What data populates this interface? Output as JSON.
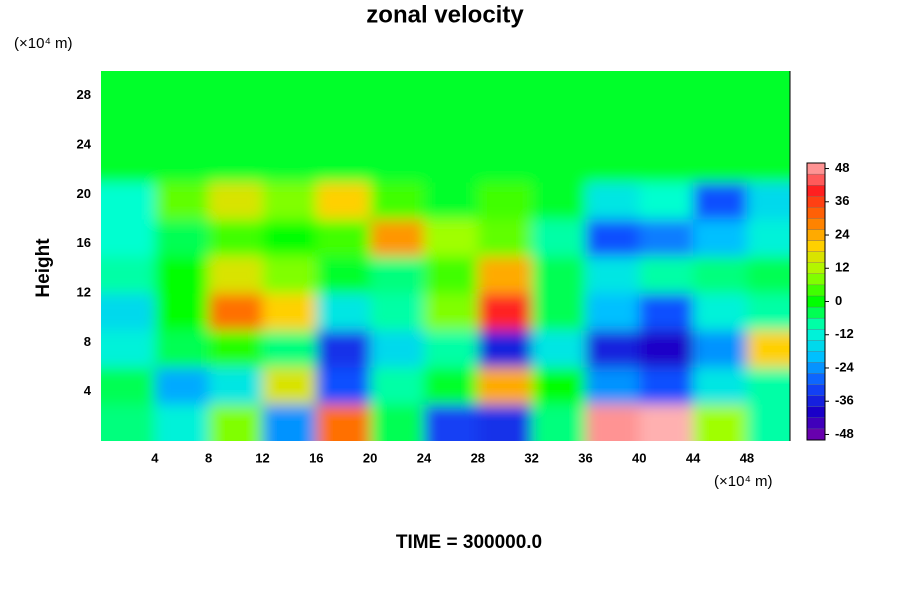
{
  "chart_data": {
    "type": "heatmap",
    "title": "zonal velocity",
    "y_unit": "(×10⁴ m)",
    "x_unit": "(×10⁴ m)",
    "ylabel": "Height",
    "footer": "TIME = 300000.0",
    "xbins": [
      0,
      4,
      8,
      12,
      16,
      20,
      24,
      28,
      32,
      36,
      40,
      44,
      48,
      51.2
    ],
    "ybins": [
      0,
      3,
      6,
      9,
      12,
      15,
      18,
      21,
      24,
      27,
      30
    ],
    "values": [
      [
        -6,
        -12,
        8,
        -24,
        30,
        -4,
        -32,
        -34,
        -6,
        48,
        50,
        10,
        -8
      ],
      [
        -4,
        -22,
        -14,
        16,
        -30,
        -8,
        -2,
        24,
        0,
        -24,
        -30,
        -14,
        -8
      ],
      [
        -12,
        -4,
        2,
        -6,
        -34,
        -16,
        -8,
        -36,
        -14,
        -36,
        -40,
        -24,
        20
      ],
      [
        -16,
        0,
        30,
        20,
        -14,
        -8,
        8,
        40,
        -4,
        -20,
        -30,
        -12,
        -8
      ],
      [
        -8,
        0,
        16,
        8,
        -2,
        -6,
        4,
        24,
        -4,
        -14,
        -8,
        -6,
        -4
      ],
      [
        -10,
        -4,
        4,
        0,
        4,
        26,
        10,
        6,
        -8,
        -30,
        -26,
        -20,
        -12
      ],
      [
        -10,
        6,
        16,
        8,
        20,
        4,
        -2,
        4,
        -2,
        -14,
        -10,
        -30,
        -16
      ],
      [
        -2,
        -2,
        -2,
        -2,
        -2,
        -2,
        -2,
        -2,
        -2,
        -2,
        -2,
        -2,
        -2
      ],
      [
        -2,
        -2,
        -2,
        -2,
        -2,
        -2,
        -2,
        -2,
        -2,
        -2,
        -2,
        -2,
        -2
      ],
      [
        -2,
        -2,
        -2,
        -2,
        -2,
        -2,
        -2,
        -2,
        -2,
        -2,
        -2,
        -2,
        -2
      ]
    ],
    "xlim": [
      0,
      51.2
    ],
    "ylim": [
      0,
      30
    ],
    "xticks": [
      4,
      8,
      12,
      16,
      20,
      24,
      28,
      32,
      36,
      40,
      44,
      48
    ],
    "yticks": [
      4,
      8,
      12,
      16,
      20,
      24,
      28
    ],
    "clim": [
      -50,
      50
    ],
    "clevel_step": 4,
    "cticks": [
      -48,
      -36,
      -24,
      -12,
      0,
      12,
      24,
      36,
      48
    ],
    "colormap": [
      "#7a00a8",
      "#1a00c8",
      "#1050ff",
      "#00c0ff",
      "#00ffd0",
      "#00ff00",
      "#a0ff00",
      "#ffd000",
      "#ff7000",
      "#ff2020",
      "#ffb0b0"
    ]
  }
}
